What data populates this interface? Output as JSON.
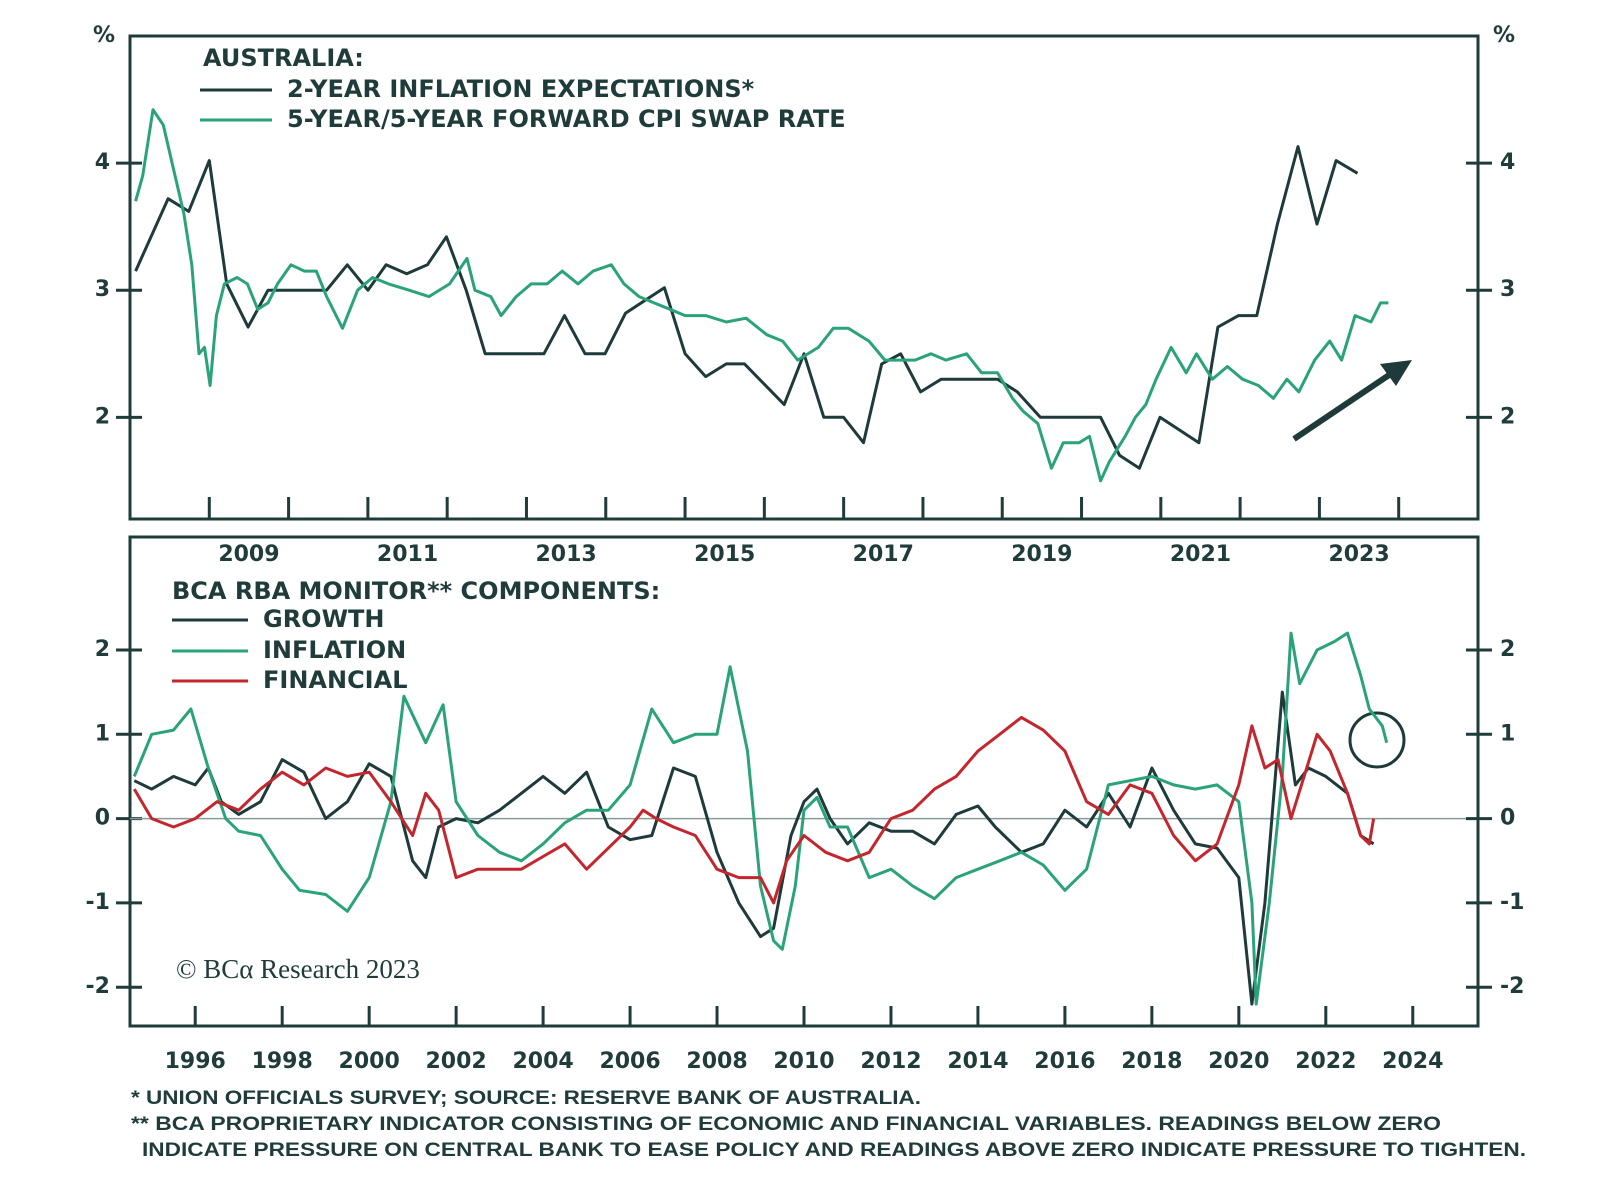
{
  "chart_data": [
    {
      "type": "line",
      "legend_title": "AUSTRALIA:",
      "y_label": "%",
      "y2_label": "%",
      "xlim": [
        2008,
        2025
      ],
      "xticks": [
        2009,
        2011,
        2013,
        2015,
        2017,
        2019,
        2021,
        2023
      ],
      "xminorticks": [
        2010,
        2012,
        2014,
        2016,
        2018,
        2020,
        2022,
        2024
      ],
      "ylim": [
        1.2,
        5
      ],
      "yticks": [
        2,
        3,
        4
      ],
      "y2lim": [
        1.2,
        5
      ],
      "y2ticks": [
        2,
        3,
        4
      ],
      "series": [
        {
          "name": "2-YEAR INFLATION EXPECTATIONS*",
          "color": "#1e3a3a",
          "x": [
            2008.07,
            2008.48,
            2008.74,
            2009.0,
            2009.22,
            2009.49,
            2009.74,
            2010.48,
            2010.74,
            2011.0,
            2011.23,
            2011.49,
            2011.75,
            2011.99,
            2012.24,
            2012.48,
            2013.22,
            2013.48,
            2013.74,
            2013.99,
            2014.25,
            2014.74,
            2015.0,
            2015.26,
            2015.52,
            2015.75,
            2016.25,
            2016.5,
            2016.75,
            2017.0,
            2017.25,
            2017.48,
            2017.72,
            2017.97,
            2018.23,
            2018.94,
            2019.19,
            2019.48,
            2020.24,
            2020.48,
            2020.73,
            2020.99,
            2021.48,
            2021.72,
            2021.98,
            2022.21,
            2022.47,
            2022.73,
            2022.97,
            2023.21,
            2023.48
          ],
          "values": [
            3.15,
            3.72,
            3.62,
            4.02,
            3.05,
            2.71,
            3.0,
            3.0,
            3.2,
            3.0,
            3.2,
            3.13,
            3.2,
            3.42,
            3.0,
            2.5,
            2.5,
            2.8,
            2.5,
            2.5,
            2.82,
            3.02,
            2.5,
            2.32,
            2.42,
            2.42,
            2.1,
            2.5,
            2.0,
            2.0,
            1.8,
            2.42,
            2.5,
            2.2,
            2.3,
            2.3,
            2.2,
            2.0,
            2.0,
            1.7,
            1.6,
            2.0,
            1.8,
            2.71,
            2.8,
            2.8,
            3.52,
            4.13,
            3.52,
            4.02,
            3.92
          ]
        },
        {
          "name": "5-YEAR/5-YEAR FORWARD CPI SWAP RATE",
          "color": "#2aa37a",
          "x": [
            2008.07,
            2008.16,
            2008.29,
            2008.42,
            2008.55,
            2008.68,
            2008.78,
            2008.87,
            2008.94,
            2009.01,
            2009.09,
            2009.19,
            2009.35,
            2009.48,
            2009.61,
            2009.74,
            2009.86,
            2010.03,
            2010.2,
            2010.35,
            2010.48,
            2010.68,
            2010.87,
            2011.06,
            2011.26,
            2011.52,
            2011.77,
            2012.03,
            2012.25,
            2012.35,
            2012.55,
            2012.68,
            2012.87,
            2013.06,
            2013.26,
            2013.45,
            2013.65,
            2013.84,
            2014.07,
            2014.23,
            2014.42,
            2014.61,
            2014.81,
            2015.0,
            2015.26,
            2015.52,
            2015.77,
            2016.03,
            2016.23,
            2016.42,
            2016.68,
            2016.87,
            2017.06,
            2017.32,
            2017.52,
            2017.71,
            2017.9,
            2018.1,
            2018.29,
            2018.55,
            2018.74,
            2018.94,
            2019.13,
            2019.26,
            2019.45,
            2019.62,
            2019.77,
            2019.97,
            2020.1,
            2020.24,
            2020.35,
            2020.55,
            2020.68,
            2020.81,
            2020.94,
            2021.13,
            2021.32,
            2021.45,
            2021.65,
            2021.84,
            2022.03,
            2022.23,
            2022.42,
            2022.59,
            2022.74,
            2022.94,
            2023.13,
            2023.28,
            2023.45,
            2023.65,
            2023.77,
            2023.87
          ],
          "values": [
            3.7,
            3.9,
            4.42,
            4.3,
            3.95,
            3.6,
            3.2,
            2.5,
            2.55,
            2.25,
            2.8,
            3.05,
            3.1,
            3.05,
            2.85,
            2.9,
            3.05,
            3.2,
            3.15,
            3.15,
            2.95,
            2.7,
            3.0,
            3.1,
            3.05,
            3.0,
            2.95,
            3.05,
            3.25,
            3.0,
            2.95,
            2.8,
            2.95,
            3.05,
            3.05,
            3.15,
            3.05,
            3.15,
            3.2,
            3.05,
            2.95,
            2.9,
            2.85,
            2.8,
            2.8,
            2.75,
            2.78,
            2.65,
            2.6,
            2.45,
            2.55,
            2.7,
            2.7,
            2.6,
            2.45,
            2.45,
            2.45,
            2.5,
            2.45,
            2.5,
            2.35,
            2.35,
            2.15,
            2.05,
            1.95,
            1.6,
            1.8,
            1.8,
            1.85,
            1.5,
            1.65,
            1.85,
            2.0,
            2.1,
            2.3,
            2.55,
            2.35,
            2.5,
            2.3,
            2.4,
            2.3,
            2.25,
            2.15,
            2.3,
            2.2,
            2.45,
            2.6,
            2.45,
            2.8,
            2.75,
            2.9,
            2.9
          ]
        }
      ]
    },
    {
      "type": "line",
      "legend_title": "BCA RBA MONITOR** COMPONENTS:",
      "annotation": "© BCα Research 2023",
      "xlim": [
        1994.5,
        2025.5
      ],
      "xticks": [
        1996,
        1998,
        2000,
        2002,
        2004,
        2006,
        2008,
        2010,
        2012,
        2014,
        2016,
        2018,
        2020,
        2022,
        2024
      ],
      "ylim": [
        -2.46,
        3.34
      ],
      "yticks": [
        -2,
        -1,
        0,
        1,
        2
      ],
      "y2lim": [
        -2.46,
        3.34
      ],
      "y2ticks": [
        -2,
        -1,
        0,
        1,
        2
      ],
      "series": [
        {
          "name": "GROWTH",
          "color": "#1e3a3a",
          "x": [
            1994.6,
            1995.0,
            1995.5,
            1996.0,
            1996.3,
            1996.6,
            1997.0,
            1997.5,
            1998.0,
            1998.5,
            1999.0,
            1999.5,
            2000.0,
            2000.5,
            2001.0,
            2001.3,
            2001.6,
            2002.0,
            2002.5,
            2003.0,
            2003.5,
            2004.0,
            2004.5,
            2005.0,
            2005.5,
            2006.0,
            2006.5,
            2007.0,
            2007.5,
            2008.0,
            2008.5,
            2009.0,
            2009.3,
            2009.7,
            2010.0,
            2010.3,
            2010.6,
            2011.0,
            2011.5,
            2012.0,
            2012.5,
            2013.0,
            2013.5,
            2014.0,
            2014.4,
            2015.0,
            2015.5,
            2016.0,
            2016.5,
            2017.0,
            2017.5,
            2018.0,
            2018.5,
            2019.0,
            2019.5,
            2020.0,
            2020.3,
            2020.6,
            2021.0,
            2021.3,
            2021.6,
            2022.0,
            2022.5,
            2022.8,
            2023.1
          ],
          "values": [
            0.45,
            0.35,
            0.5,
            0.4,
            0.6,
            0.2,
            0.05,
            0.2,
            0.7,
            0.55,
            0.0,
            0.2,
            0.65,
            0.5,
            -0.5,
            -0.7,
            -0.1,
            0.0,
            -0.05,
            0.1,
            0.3,
            0.5,
            0.3,
            0.55,
            -0.1,
            -0.25,
            -0.2,
            0.6,
            0.5,
            -0.4,
            -1.0,
            -1.4,
            -1.3,
            -0.2,
            0.2,
            0.35,
            0.0,
            -0.3,
            -0.05,
            -0.15,
            -0.15,
            -0.3,
            0.05,
            0.15,
            -0.1,
            -0.4,
            -0.3,
            0.1,
            -0.1,
            0.3,
            -0.1,
            0.6,
            0.1,
            -0.3,
            -0.35,
            -0.7,
            -2.2,
            -1.0,
            1.5,
            0.4,
            0.6,
            0.5,
            0.3,
            -0.2,
            -0.3
          ]
        },
        {
          "name": "INFLATION",
          "color": "#2aa37a",
          "x": [
            1994.6,
            1995.0,
            1995.5,
            1995.9,
            1996.3,
            1996.7,
            1997.0,
            1997.5,
            1998.0,
            1998.4,
            1999.0,
            1999.5,
            2000.0,
            2000.5,
            2000.8,
            2001.3,
            2001.7,
            2002.0,
            2002.5,
            2003.0,
            2003.5,
            2004.0,
            2004.5,
            2005.0,
            2005.5,
            2006.0,
            2006.5,
            2007.0,
            2007.5,
            2008.0,
            2008.3,
            2008.7,
            2009.0,
            2009.3,
            2009.5,
            2009.8,
            2010.0,
            2010.3,
            2010.6,
            2011.0,
            2011.5,
            2012.0,
            2012.5,
            2013.0,
            2013.5,
            2014.0,
            2014.5,
            2015.0,
            2015.5,
            2016.0,
            2016.5,
            2016.8,
            2017.0,
            2017.5,
            2018.0,
            2018.5,
            2019.0,
            2019.5,
            2020.0,
            2020.3,
            2020.4,
            2020.7,
            2021.0,
            2021.2,
            2021.4,
            2021.8,
            2022.2,
            2022.5,
            2022.8,
            2023.0,
            2023.3,
            2023.4
          ],
          "values": [
            0.5,
            1.0,
            1.05,
            1.3,
            0.6,
            0.0,
            -0.15,
            -0.2,
            -0.6,
            -0.85,
            -0.9,
            -1.1,
            -0.7,
            0.2,
            1.45,
            0.9,
            1.35,
            0.2,
            -0.2,
            -0.4,
            -0.5,
            -0.3,
            -0.05,
            0.1,
            0.1,
            0.4,
            1.3,
            0.9,
            1.0,
            1.0,
            1.8,
            0.8,
            -0.8,
            -1.45,
            -1.55,
            -0.8,
            0.1,
            0.25,
            -0.1,
            -0.1,
            -0.7,
            -0.6,
            -0.8,
            -0.95,
            -0.7,
            -0.6,
            -0.5,
            -0.4,
            -0.55,
            -0.85,
            -0.6,
            0.0,
            0.4,
            0.45,
            0.5,
            0.4,
            0.35,
            0.4,
            0.2,
            -1.0,
            -2.2,
            -1.0,
            0.5,
            2.2,
            1.6,
            2.0,
            2.1,
            2.2,
            1.7,
            1.3,
            1.1,
            0.9
          ]
        },
        {
          "name": "FINANCIAL",
          "color": "#c4262e",
          "x": [
            1994.6,
            1995.0,
            1995.5,
            1996.0,
            1996.5,
            1997.0,
            1997.5,
            1998.0,
            1998.5,
            1999.0,
            1999.5,
            2000.0,
            2000.5,
            2001.0,
            2001.3,
            2001.6,
            2002.0,
            2002.5,
            2003.0,
            2003.5,
            2004.0,
            2004.5,
            2005.0,
            2005.5,
            2006.0,
            2006.3,
            2006.6,
            2007.0,
            2007.5,
            2008.0,
            2008.5,
            2009.0,
            2009.3,
            2009.6,
            2010.0,
            2010.5,
            2011.0,
            2011.5,
            2012.0,
            2012.5,
            2013.0,
            2013.5,
            2014.0,
            2014.5,
            2015.0,
            2015.5,
            2016.0,
            2016.5,
            2017.0,
            2017.5,
            2018.0,
            2018.5,
            2019.0,
            2019.5,
            2020.0,
            2020.3,
            2020.6,
            2020.9,
            2021.2,
            2021.5,
            2021.8,
            2022.1,
            2022.5,
            2022.8,
            2023.0,
            2023.1
          ],
          "values": [
            0.35,
            0.0,
            -0.1,
            0.0,
            0.2,
            0.1,
            0.35,
            0.55,
            0.4,
            0.6,
            0.5,
            0.55,
            0.2,
            -0.2,
            0.3,
            0.1,
            -0.7,
            -0.6,
            -0.6,
            -0.6,
            -0.45,
            -0.3,
            -0.6,
            -0.35,
            -0.1,
            0.1,
            0.0,
            -0.1,
            -0.2,
            -0.6,
            -0.7,
            -0.7,
            -1.0,
            -0.5,
            -0.2,
            -0.4,
            -0.5,
            -0.4,
            0.0,
            0.1,
            0.35,
            0.5,
            0.8,
            1.0,
            1.2,
            1.05,
            0.8,
            0.2,
            0.05,
            0.4,
            0.3,
            -0.2,
            -0.5,
            -0.3,
            0.4,
            1.1,
            0.6,
            0.7,
            0.0,
            0.5,
            1.0,
            0.8,
            0.3,
            -0.2,
            -0.3,
            0.0
          ]
        }
      ]
    }
  ],
  "footnotes": [
    "* UNION OFFICIALS SURVEY; SOURCE: RESERVE BANK OF AUSTRALIA.",
    "** BCA PROPRIETARY INDICATOR CONSISTING OF ECONOMIC AND FINANCIAL VARIABLES. READINGS BELOW ZERO",
    "INDICATE PRESSURE ON CENTRAL BANK TO EASE POLICY AND READINGS ABOVE ZERO INDICATE PRESSURE TO TIGHTEN."
  ]
}
